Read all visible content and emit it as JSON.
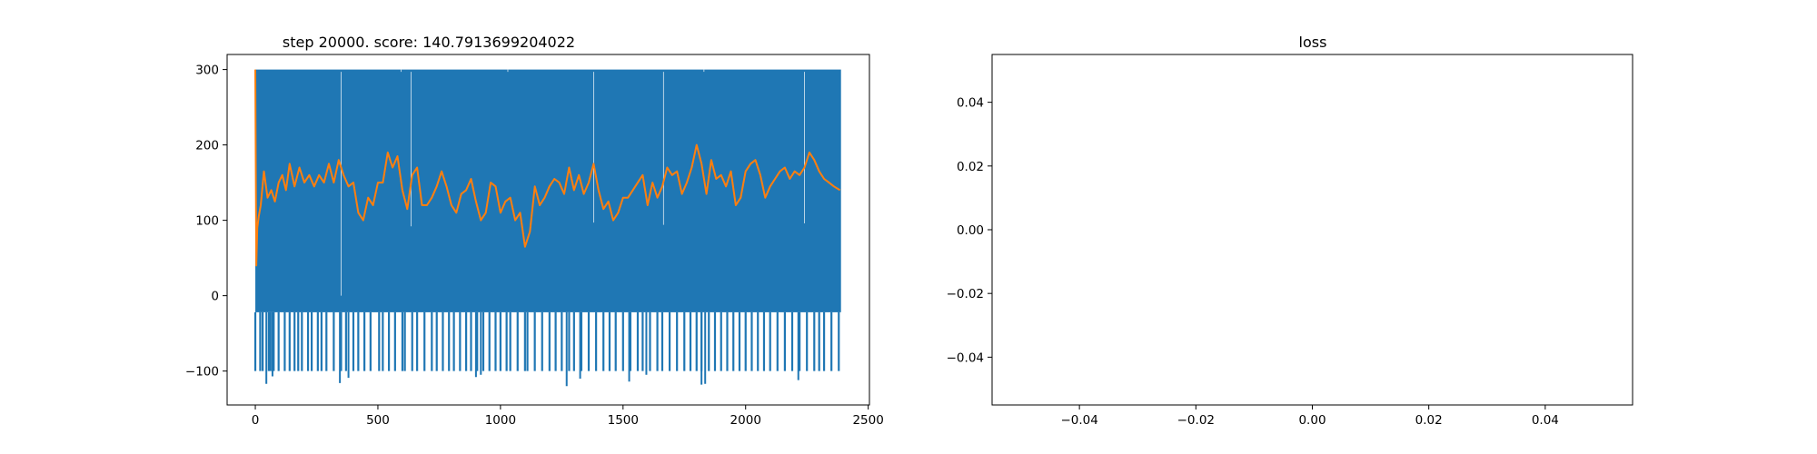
{
  "chart_data": [
    {
      "type": "line",
      "title": "step 20000. score: 140.7913699204022",
      "xlabel": "",
      "ylabel": "",
      "xlim": [
        -115,
        2505
      ],
      "ylim": [
        -145,
        320
      ],
      "xticks": [
        0,
        500,
        1000,
        1500,
        2000,
        2500
      ],
      "yticks": [
        -100,
        0,
        100,
        200,
        300
      ],
      "grid": false,
      "legend": "none",
      "n_points": 2390,
      "series": [
        {
          "role": "per-episode score",
          "color": "#1f77b4",
          "style": "dense oscillation, almost every episode alternating between about -22 and 300",
          "upper_value": 300,
          "lower_value": -22,
          "typical_low_dip": -100,
          "dips_to_about_minus_100": [
            0,
            20,
            30,
            55,
            62,
            75,
            95,
            120,
            140,
            160,
            175,
            190,
            215,
            230,
            255,
            270,
            290,
            320,
            350,
            370,
            400,
            420,
            445,
            470,
            505,
            520,
            545,
            570,
            600,
            610,
            640,
            660,
            690,
            720,
            740,
            765,
            790,
            810,
            835,
            860,
            880,
            905,
            930,
            955,
            980,
            1000,
            1025,
            1040,
            1070,
            1100,
            1110,
            1140,
            1170,
            1200,
            1225,
            1250,
            1280,
            1300,
            1330,
            1360,
            1390,
            1420,
            1445,
            1470,
            1500,
            1530,
            1560,
            1580,
            1610,
            1640,
            1660,
            1690,
            1720,
            1750,
            1775,
            1800,
            1820,
            1850,
            1875,
            1900,
            1925,
            1950,
            1975,
            2000,
            2025,
            2050,
            2075,
            2100,
            2130,
            2160,
            2190,
            2220,
            2250,
            2280,
            2300,
            2320,
            2350,
            2380
          ],
          "deeper_dips": [
            [
              45,
              -117
            ],
            [
              70,
              -107
            ],
            [
              345,
              -116
            ],
            [
              380,
              -109
            ],
            [
              900,
              -108
            ],
            [
              920,
              -105
            ],
            [
              1270,
              -120
            ],
            [
              1325,
              -110
            ],
            [
              1525,
              -114
            ],
            [
              1595,
              -105
            ],
            [
              1820,
              -118
            ],
            [
              1835,
              -117
            ],
            [
              2215,
              -112
            ]
          ],
          "upward_gaps": [
            [
              350,
              0
            ],
            [
              595,
              300
            ],
            [
              635,
              92
            ],
            [
              1030,
              300
            ],
            [
              1380,
              97
            ],
            [
              1665,
              94
            ],
            [
              1830,
              300
            ],
            [
              2240,
              96
            ]
          ]
        },
        {
          "role": "moving average of score",
          "color": "#ff7f0e",
          "x": [
            0,
            4,
            8,
            14,
            22,
            35,
            50,
            65,
            80,
            95,
            110,
            125,
            140,
            160,
            180,
            200,
            220,
            240,
            260,
            280,
            300,
            320,
            340,
            360,
            380,
            400,
            420,
            440,
            460,
            480,
            500,
            520,
            540,
            560,
            580,
            600,
            620,
            640,
            660,
            680,
            700,
            720,
            740,
            760,
            780,
            800,
            820,
            840,
            860,
            880,
            900,
            920,
            940,
            960,
            980,
            1000,
            1020,
            1040,
            1060,
            1080,
            1100,
            1120,
            1140,
            1160,
            1180,
            1200,
            1220,
            1240,
            1260,
            1280,
            1300,
            1320,
            1340,
            1360,
            1380,
            1400,
            1420,
            1440,
            1460,
            1480,
            1500,
            1520,
            1540,
            1560,
            1580,
            1600,
            1620,
            1640,
            1660,
            1680,
            1700,
            1720,
            1740,
            1760,
            1780,
            1800,
            1820,
            1840,
            1860,
            1880,
            1900,
            1920,
            1940,
            1960,
            1980,
            2000,
            2020,
            2040,
            2060,
            2080,
            2100,
            2120,
            2140,
            2160,
            2180,
            2200,
            2220,
            2240,
            2260,
            2280,
            2300,
            2320,
            2340,
            2360,
            2385
          ],
          "y": [
            300,
            40,
            90,
            105,
            120,
            165,
            130,
            140,
            125,
            150,
            160,
            140,
            175,
            145,
            170,
            150,
            160,
            145,
            160,
            150,
            175,
            150,
            180,
            160,
            145,
            150,
            110,
            100,
            130,
            120,
            150,
            150,
            190,
            170,
            185,
            140,
            115,
            160,
            170,
            120,
            120,
            130,
            145,
            165,
            145,
            120,
            110,
            135,
            140,
            155,
            125,
            100,
            110,
            150,
            145,
            110,
            125,
            130,
            100,
            110,
            65,
            85,
            145,
            120,
            130,
            145,
            155,
            150,
            135,
            170,
            140,
            160,
            135,
            150,
            175,
            140,
            115,
            125,
            100,
            110,
            130,
            130,
            140,
            150,
            160,
            120,
            150,
            130,
            145,
            170,
            160,
            165,
            135,
            150,
            170,
            200,
            175,
            135,
            180,
            155,
            160,
            145,
            165,
            120,
            130,
            165,
            175,
            180,
            160,
            130,
            145,
            155,
            165,
            170,
            155,
            165,
            160,
            170,
            190,
            180,
            165,
            155,
            150,
            145,
            140
          ]
        }
      ]
    },
    {
      "type": "line",
      "title": "loss",
      "xlabel": "",
      "ylabel": "",
      "xlim": [
        -0.055,
        0.055
      ],
      "ylim": [
        -0.055,
        0.055
      ],
      "xticks": [
        "−0.04",
        "−0.02",
        "0.00",
        "0.02",
        "0.04"
      ],
      "yticks": [
        "−0.04",
        "−0.02",
        "0.00",
        "0.02",
        "0.04"
      ],
      "grid": false,
      "legend": "none",
      "series": []
    }
  ],
  "colors": {
    "score_series": "#1f77b4",
    "average_series": "#ff7f0e",
    "axes": "#000000",
    "background": "#ffffff"
  }
}
